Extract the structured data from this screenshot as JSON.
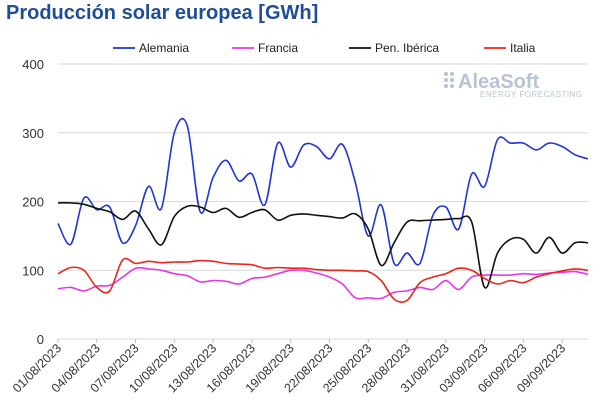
{
  "title": "Producción solar europea [GWh]",
  "logo": {
    "name": "AleaSoft",
    "tagline": "ENERGY FORECASTING"
  },
  "chart_data": {
    "type": "line",
    "title": "Producción solar europea [GWh]",
    "xlabel": "",
    "ylabel": "",
    "ylim": [
      0,
      400
    ],
    "yticks": [
      0,
      100,
      200,
      300,
      400
    ],
    "grid": "horizontal",
    "legend_position": "top",
    "x": [
      "01/08/2023",
      "02/08/2023",
      "03/08/2023",
      "04/08/2023",
      "05/08/2023",
      "06/08/2023",
      "07/08/2023",
      "08/08/2023",
      "09/08/2023",
      "10/08/2023",
      "11/08/2023",
      "12/08/2023",
      "13/08/2023",
      "14/08/2023",
      "15/08/2023",
      "16/08/2023",
      "17/08/2023",
      "18/08/2023",
      "19/08/2023",
      "20/08/2023",
      "21/08/2023",
      "22/08/2023",
      "23/08/2023",
      "24/08/2023",
      "25/08/2023",
      "26/08/2023",
      "27/08/2023",
      "28/08/2023",
      "29/08/2023",
      "30/08/2023",
      "31/08/2023",
      "01/09/2023",
      "02/09/2023",
      "03/09/2023",
      "04/09/2023",
      "05/09/2023",
      "06/09/2023",
      "07/09/2023",
      "08/09/2023",
      "09/09/2023",
      "10/09/2023",
      "11/09/2023"
    ],
    "xtick_labels": [
      "01/08/2023",
      "04/08/2023",
      "07/08/2023",
      "10/08/2023",
      "13/08/2023",
      "16/08/2023",
      "19/08/2023",
      "22/08/2023",
      "25/08/2023",
      "28/08/2023",
      "31/08/2023",
      "03/09/2023",
      "06/09/2023",
      "09/09/2023"
    ],
    "series": [
      {
        "name": "Alemania",
        "color": "#1f35d6",
        "values": [
          168,
          138,
          205,
          188,
          192,
          140,
          165,
          222,
          190,
          300,
          310,
          185,
          235,
          260,
          230,
          240,
          195,
          285,
          250,
          282,
          280,
          262,
          283,
          228,
          150,
          195,
          110,
          125,
          110,
          180,
          192,
          160,
          240,
          222,
          290,
          285,
          285,
          275,
          285,
          280,
          268,
          262
        ]
      },
      {
        "name": "Francia",
        "color": "#e23ae6",
        "values": [
          73,
          75,
          70,
          77,
          78,
          90,
          103,
          102,
          100,
          95,
          92,
          83,
          85,
          84,
          80,
          88,
          90,
          95,
          100,
          100,
          96,
          90,
          80,
          60,
          60,
          59,
          68,
          70,
          75,
          72,
          85,
          72,
          90,
          93,
          93,
          93,
          95,
          94,
          96,
          97,
          98,
          94
        ]
      },
      {
        "name": "Pen. Ibérica",
        "color": "#111111",
        "values": [
          198,
          198,
          196,
          190,
          185,
          174,
          186,
          160,
          137,
          178,
          193,
          192,
          184,
          190,
          177,
          184,
          188,
          173,
          180,
          182,
          180,
          178,
          176,
          182,
          160,
          107,
          140,
          170,
          172,
          173,
          174,
          175,
          170,
          75,
          125,
          145,
          145,
          125,
          148,
          125,
          140,
          140
        ]
      },
      {
        "name": "Italia",
        "color": "#e8261b",
        "values": [
          95,
          104,
          100,
          75,
          70,
          115,
          110,
          113,
          111,
          112,
          112,
          114,
          113,
          110,
          109,
          108,
          103,
          104,
          103,
          103,
          101,
          100,
          100,
          99,
          98,
          85,
          58,
          56,
          82,
          90,
          95,
          103,
          100,
          88,
          80,
          85,
          82,
          90,
          95,
          99,
          102,
          100
        ]
      }
    ]
  }
}
